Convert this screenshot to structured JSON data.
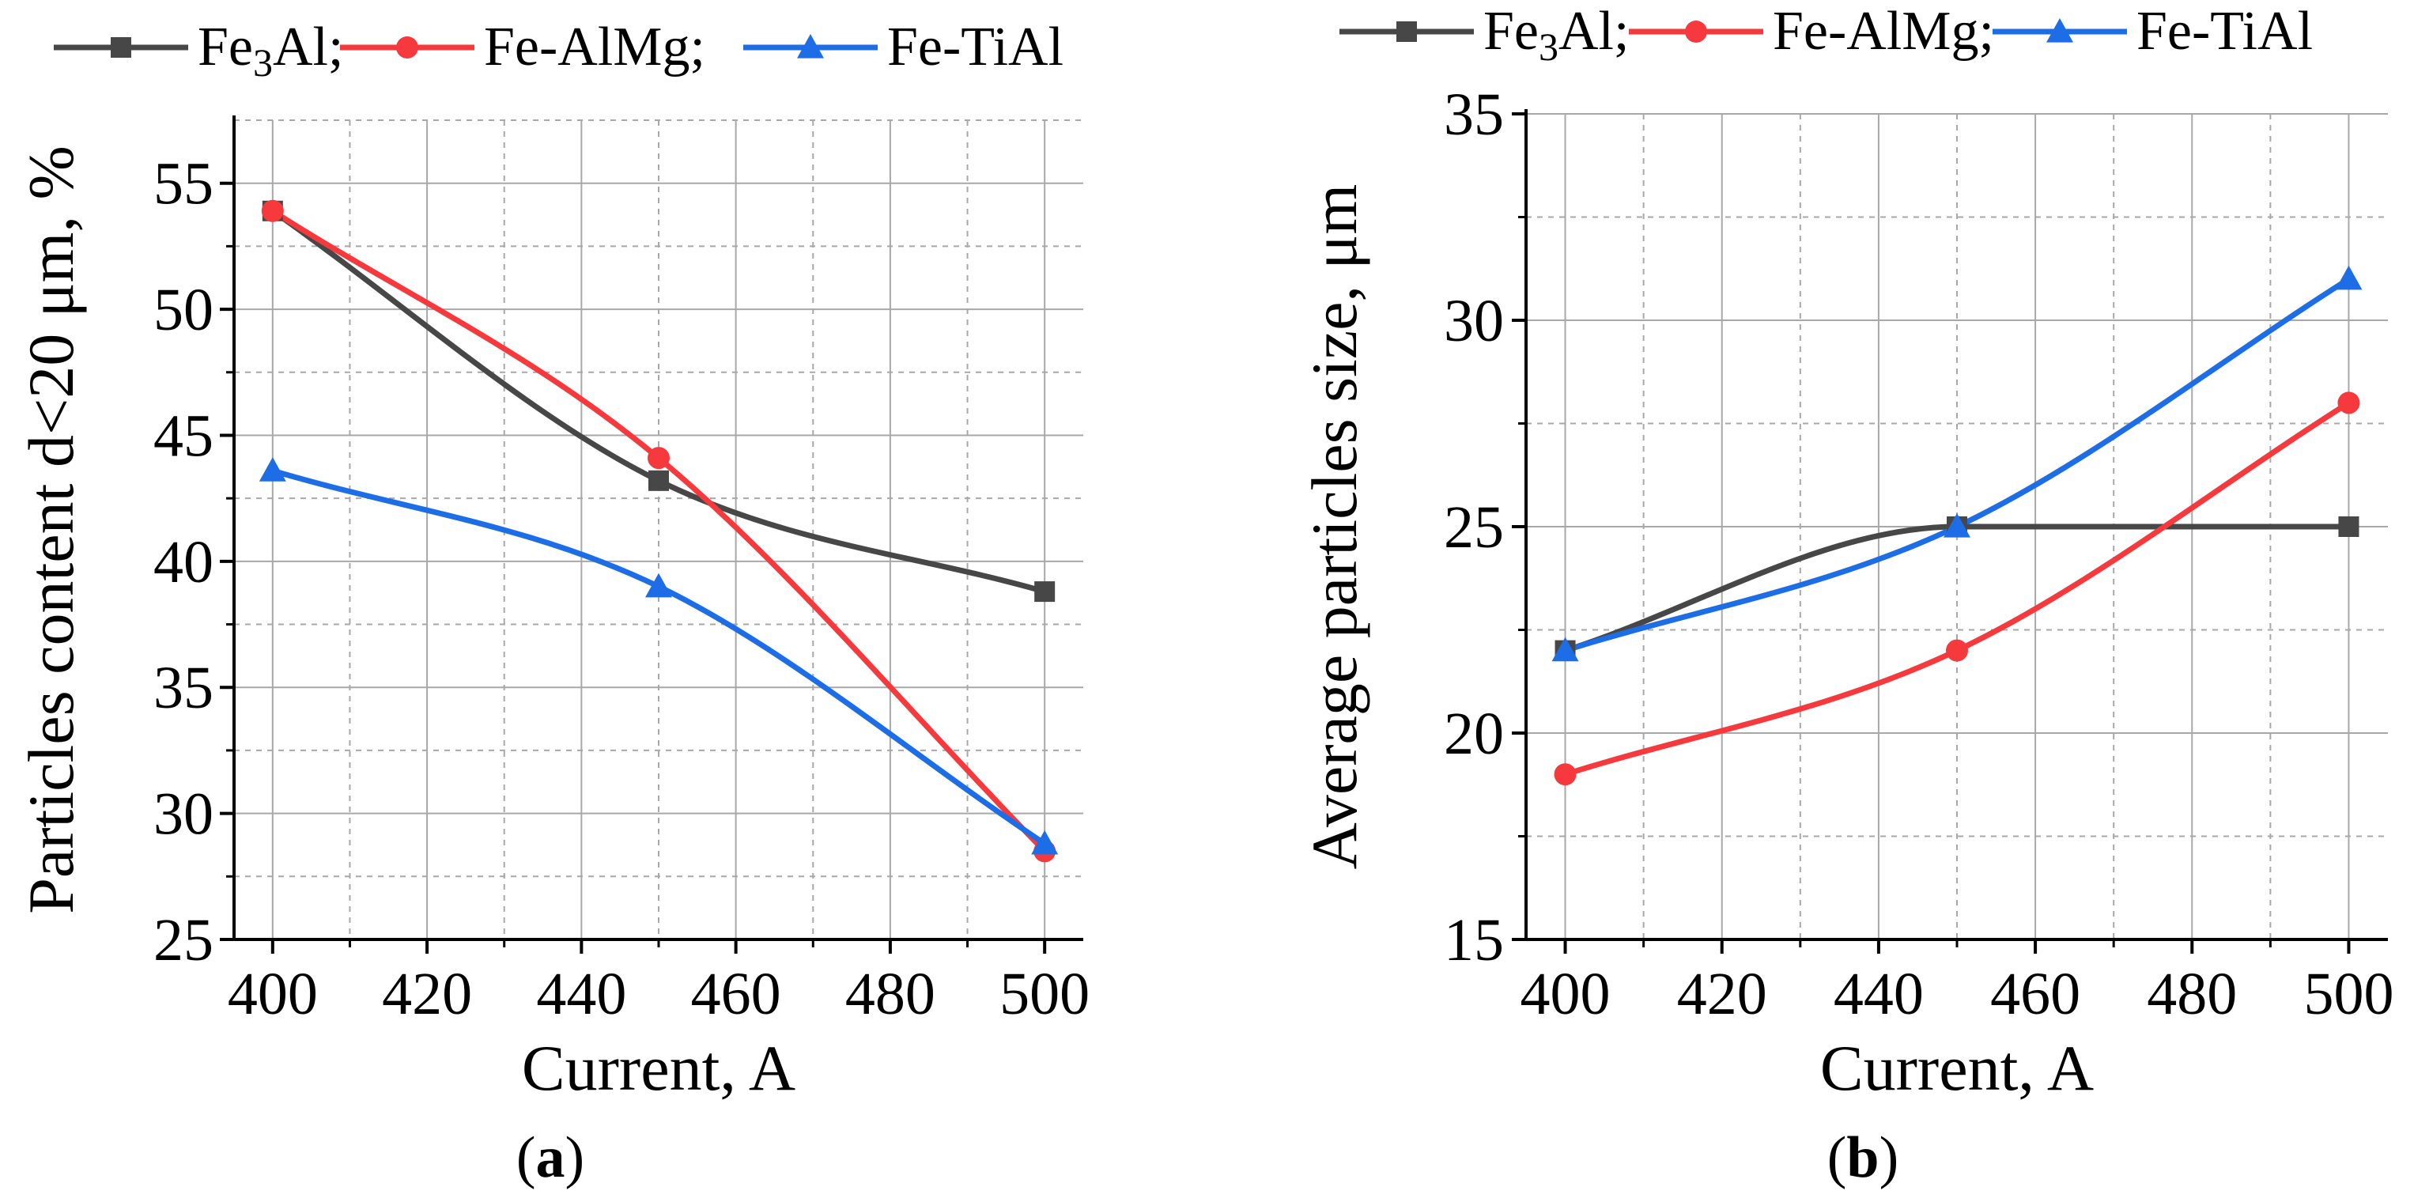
{
  "colors": {
    "fe3al": "#474747",
    "fealmg": "#f5393c",
    "fetial": "#1d6ee6",
    "grid": "#a8a8a8",
    "axis": "#000000"
  },
  "chart_data": [
    {
      "id": "a",
      "type": "line",
      "caption_open": "(",
      "caption_letter": "a",
      "caption_close": ")",
      "xlabel": "Current, A",
      "ylabel": "Particles content d<20 μm, %",
      "xlim": [
        395,
        505
      ],
      "ylim": [
        25,
        57.5
      ],
      "xticks": [
        400,
        420,
        440,
        460,
        480,
        500
      ],
      "yticks": [
        25,
        30,
        35,
        40,
        45,
        50,
        55
      ],
      "grid": true,
      "legend_position": "top",
      "x": [
        400,
        450,
        500
      ],
      "series": [
        {
          "name": "Fe3Al;",
          "name_base": "Fe",
          "name_sub": "3",
          "name_rest": "Al;",
          "color_key": "fe3al",
          "marker": "square",
          "values": [
            53.9,
            43.2,
            38.8
          ]
        },
        {
          "name": "Fe-AlMg;",
          "name_base": "Fe-AlMg;",
          "color_key": "fealmg",
          "marker": "circle",
          "values": [
            53.9,
            44.1,
            28.5
          ]
        },
        {
          "name": "Fe-TiAl",
          "name_base": "Fe-TiAl",
          "color_key": "fetial",
          "marker": "triangle",
          "values": [
            43.6,
            39.0,
            28.8
          ]
        }
      ]
    },
    {
      "id": "b",
      "type": "line",
      "caption_open": "(",
      "caption_letter": "b",
      "caption_close": ")",
      "xlabel": "Current, A",
      "ylabel": "Average particles size, μm",
      "xlim": [
        395,
        505
      ],
      "ylim": [
        15,
        35
      ],
      "xticks": [
        400,
        420,
        440,
        460,
        480,
        500
      ],
      "yticks": [
        15,
        20,
        25,
        30,
        35
      ],
      "grid": true,
      "legend_position": "top",
      "x": [
        400,
        450,
        500
      ],
      "series": [
        {
          "name": "Fe3Al;",
          "name_base": "Fe",
          "name_sub": "3",
          "name_rest": "Al;",
          "color_key": "fe3al",
          "marker": "square",
          "values": [
            22,
            25,
            25
          ]
        },
        {
          "name": "Fe-AlMg;",
          "name_base": "Fe-AlMg;",
          "color_key": "fealmg",
          "marker": "circle",
          "values": [
            19,
            22,
            28
          ]
        },
        {
          "name": "Fe-TiAl",
          "name_base": "Fe-TiAl",
          "color_key": "fetial",
          "marker": "triangle",
          "values": [
            22,
            25,
            31
          ]
        }
      ]
    }
  ]
}
